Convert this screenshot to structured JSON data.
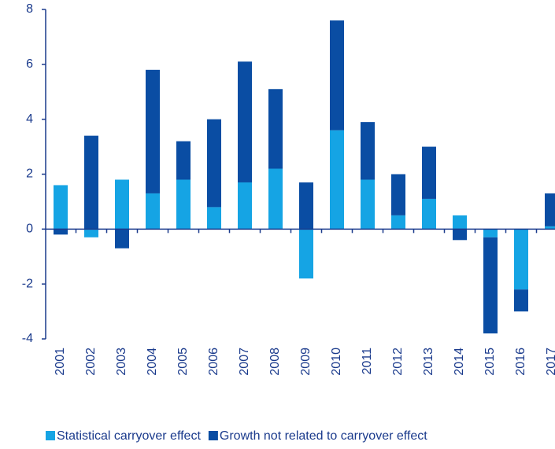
{
  "chart_data": {
    "type": "bar",
    "stacked": true,
    "categories": [
      "2001",
      "2002",
      "2003",
      "2004",
      "2005",
      "2006",
      "2007",
      "2008",
      "2009",
      "2010",
      "2011",
      "2012",
      "2013",
      "2014",
      "2015",
      "2016",
      "2017"
    ],
    "series": [
      {
        "name": "Statistical carryover effect",
        "color": "#15a4e4",
        "values": [
          1.6,
          -0.3,
          1.8,
          1.3,
          1.8,
          0.8,
          1.7,
          2.2,
          -1.8,
          3.6,
          1.8,
          0.5,
          1.1,
          0.5,
          -0.3,
          -2.2,
          0.1
        ]
      },
      {
        "name": "Growth not related to carryover effect",
        "color": "#0a4da3",
        "values": [
          -0.2,
          3.4,
          -0.7,
          4.5,
          1.4,
          3.2,
          4.4,
          2.9,
          1.7,
          4.0,
          2.1,
          1.5,
          1.9,
          -0.4,
          -3.5,
          -0.8,
          1.2
        ]
      }
    ],
    "ylim": [
      -4,
      8
    ],
    "yticks": [
      -4,
      -2,
      0,
      2,
      4,
      6,
      8
    ]
  }
}
